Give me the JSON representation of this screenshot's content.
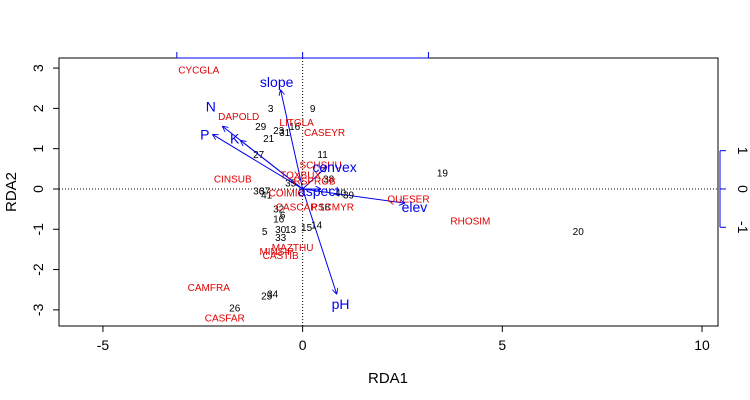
{
  "chart_data": {
    "type": "scatter",
    "title": "",
    "xlabel": "RDA1",
    "ylabel": "RDA2",
    "xlim": [
      -6.1,
      10.4
    ],
    "ylim": [
      -3.4,
      3.25
    ],
    "x_ticks": [
      -5,
      0,
      5,
      10
    ],
    "y_ticks": [
      -3,
      -2,
      -1,
      0,
      1,
      2,
      3
    ],
    "right_axis_ticks": [
      -1,
      0,
      1
    ],
    "right_axis_values": [
      -0.95,
      0,
      0.95
    ],
    "top_axis_values": [
      -3.15,
      0,
      3.15
    ],
    "colors": {
      "sites": "#000000",
      "species": "#e00000",
      "env": "#0000ee"
    },
    "sites": [
      {
        "label": "3",
        "x": -0.8,
        "y": 2.0
      },
      {
        "label": "9",
        "x": 0.25,
        "y": 2.0
      },
      {
        "label": "29",
        "x": -1.05,
        "y": 1.55
      },
      {
        "label": "16",
        "x": -0.2,
        "y": 1.55
      },
      {
        "label": "23",
        "x": -0.6,
        "y": 1.45
      },
      {
        "label": "31",
        "x": -0.45,
        "y": 1.4
      },
      {
        "label": "21",
        "x": -0.85,
        "y": 1.25
      },
      {
        "label": "27",
        "x": -1.1,
        "y": 0.85
      },
      {
        "label": "11",
        "x": 0.5,
        "y": 0.85
      },
      {
        "label": "19",
        "x": 3.5,
        "y": 0.4
      },
      {
        "label": "35",
        "x": -0.3,
        "y": 0.15
      },
      {
        "label": "38",
        "x": 0.65,
        "y": 0.25
      },
      {
        "label": "36",
        "x": -1.1,
        "y": -0.05
      },
      {
        "label": "37",
        "x": -0.95,
        "y": -0.05
      },
      {
        "label": "40",
        "x": 0.95,
        "y": -0.1
      },
      {
        "label": "39",
        "x": 1.15,
        "y": -0.15
      },
      {
        "label": "41",
        "x": -0.9,
        "y": -0.15
      },
      {
        "label": "32",
        "x": -0.6,
        "y": -0.5
      },
      {
        "label": "18",
        "x": 0.55,
        "y": -0.45
      },
      {
        "label": "6",
        "x": -0.5,
        "y": -0.65
      },
      {
        "label": "16",
        "x": -0.6,
        "y": -0.75
      },
      {
        "label": "5",
        "x": -0.95,
        "y": -1.05
      },
      {
        "label": "30",
        "x": -0.55,
        "y": -1.0
      },
      {
        "label": "13",
        "x": -0.3,
        "y": -1.0
      },
      {
        "label": "15",
        "x": 0.1,
        "y": -0.95
      },
      {
        "label": "14",
        "x": 0.35,
        "y": -0.9
      },
      {
        "label": "33",
        "x": -0.55,
        "y": -1.2
      },
      {
        "label": "20",
        "x": 6.9,
        "y": -1.05
      },
      {
        "label": "34",
        "x": -0.75,
        "y": -2.6
      },
      {
        "label": "25",
        "x": -0.9,
        "y": -2.65
      },
      {
        "label": "26",
        "x": -1.7,
        "y": -2.95
      }
    ],
    "species": [
      {
        "label": "CYCGLA",
        "x": -2.6,
        "y": 2.95
      },
      {
        "label": "DAPOLD",
        "x": -1.6,
        "y": 1.8
      },
      {
        "label": "LITGLA",
        "x": -0.15,
        "y": 1.65
      },
      {
        "label": "CASEYR",
        "x": 0.55,
        "y": 1.4
      },
      {
        "label": "SCHSHU",
        "x": 0.45,
        "y": 0.6
      },
      {
        "label": "TOXBUX",
        "x": -0.05,
        "y": 0.35
      },
      {
        "label": "RSPROB",
        "x": 0.3,
        "y": 0.2
      },
      {
        "label": "CINSUB",
        "x": -1.75,
        "y": 0.25
      },
      {
        "label": "COIMIC",
        "x": -0.4,
        "y": -0.1
      },
      {
        "label": "QUESER",
        "x": 2.65,
        "y": -0.25
      },
      {
        "label": "CASCAR",
        "x": -0.15,
        "y": -0.45
      },
      {
        "label": "PSCMYR",
        "x": 0.75,
        "y": -0.45
      },
      {
        "label": "RHOSIM",
        "x": 4.2,
        "y": -0.8
      },
      {
        "label": "MAZTHU",
        "x": -0.25,
        "y": -1.45
      },
      {
        "label": "MINSIP",
        "x": -0.65,
        "y": -1.55
      },
      {
        "label": "CASTIB",
        "x": -0.55,
        "y": -1.65
      },
      {
        "label": "CAMFRA",
        "x": -2.35,
        "y": -2.45
      },
      {
        "label": "CASFAR",
        "x": -1.95,
        "y": -3.2
      }
    ],
    "env": [
      {
        "label": "slope",
        "x": -0.55,
        "y": 2.45,
        "label_x": -0.65,
        "label_y": 2.65
      },
      {
        "label": "N",
        "x": -2.0,
        "y": 1.55,
        "label_x": -2.3,
        "label_y": 2.05
      },
      {
        "label": "P",
        "x": -2.25,
        "y": 1.35,
        "label_x": -2.45,
        "label_y": 1.35
      },
      {
        "label": "K",
        "x": -1.55,
        "y": 1.2,
        "label_x": -1.7,
        "label_y": 1.25
      },
      {
        "label": "convex",
        "x": 0.6,
        "y": 0.55,
        "label_x": 0.8,
        "label_y": 0.55
      },
      {
        "label": "aspect",
        "x": 0.45,
        "y": 0.0,
        "label_x": 0.4,
        "label_y": -0.05
      },
      {
        "label": "elev",
        "x": 2.55,
        "y": -0.35,
        "label_x": 2.8,
        "label_y": -0.45
      },
      {
        "label": "pH",
        "x": 0.85,
        "y": -2.6,
        "label_x": 0.95,
        "label_y": -2.85
      }
    ]
  }
}
